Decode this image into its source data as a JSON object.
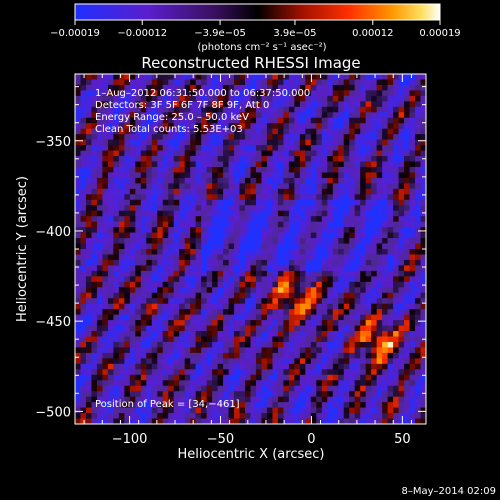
{
  "chart_data": {
    "type": "heatmap",
    "title": "Reconstructed RHESSI Image",
    "xlabel": "Heliocentric X (arcsec)",
    "ylabel": "Heliocentric Y (arcsec)",
    "xlim": [
      -130,
      63
    ],
    "ylim": [
      -507,
      -313
    ],
    "x_ticks": [
      -100,
      -50,
      0,
      50
    ],
    "y_ticks": [
      -350,
      -400,
      -450,
      -500
    ],
    "x_tick_labels": [
      "−100",
      "−50",
      "0",
      "50"
    ],
    "y_tick_labels": [
      "−350",
      "−400",
      "−450",
      "−500"
    ],
    "colorbar": {
      "min": -0.00019,
      "max": 0.00019,
      "tick_values": [
        -0.00019,
        -0.00012,
        -3.9e-05,
        3.9e-05,
        0.00012,
        0.00019
      ],
      "tick_labels": [
        "−0.00019",
        "−0.00012",
        "−3.9e−05",
        "3.9e−05",
        "0.00012",
        "0.00019"
      ],
      "unit_label": "(photons cm⁻² s⁻¹ asec⁻²)",
      "colors": [
        "#2030ff",
        "#5a1ecc",
        "#7a3cc0",
        "#000000",
        "#a01000",
        "#ff3000",
        "#ff9800",
        "#ffe060",
        "#ffffff"
      ]
    },
    "annotations": [
      "1–Aug–2012 06:31:50.000 to 06:37:50.000",
      "Detectors: 3F 5F 6F 7F 8F 9F, Att 0",
      "Energy Range: 25.0 – 50.0 keV",
      "Clean      Total counts: 5.53E+03",
      "Position of Peak = [34,−461]"
    ],
    "peak": {
      "x": 34,
      "y": -461
    },
    "grid": false
  },
  "footer": {
    "timestamp": "8–May–2014 02:09"
  }
}
